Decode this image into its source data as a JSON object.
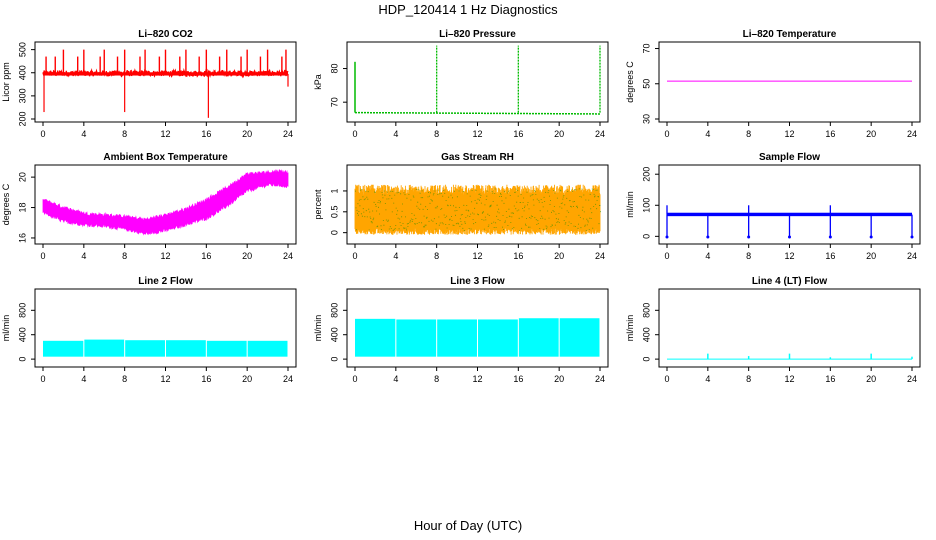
{
  "figure": {
    "title": "HDP_120414  1 Hz Diagnostics",
    "xlabel": "Hour of Day (UTC)"
  },
  "chart_data": [
    {
      "type": "line",
      "title": "Li-820 CO2",
      "ylabel": "Licor ppm",
      "color": "#ff0000",
      "xlim": [
        0,
        24
      ],
      "xticks": [
        0,
        4,
        8,
        12,
        16,
        20,
        24
      ],
      "ylim": [
        200,
        520
      ],
      "yticks": [
        200,
        300,
        400,
        500
      ],
      "pattern": "co2",
      "series": [
        {
          "name": "CO2",
          "base": 395,
          "noise": [
            385,
            410
          ],
          "spikes_up": [
            [
              0.3,
              470
            ],
            [
              1.2,
              470
            ],
            [
              2.0,
              500
            ],
            [
              3.4,
              470
            ],
            [
              4.0,
              500
            ],
            [
              5.6,
              470
            ],
            [
              6.0,
              500
            ],
            [
              7.3,
              470
            ],
            [
              8.0,
              500
            ],
            [
              9.5,
              470
            ],
            [
              10.0,
              500
            ],
            [
              11.4,
              470
            ],
            [
              12.0,
              500
            ],
            [
              13.4,
              470
            ],
            [
              14.0,
              500
            ],
            [
              15.3,
              470
            ],
            [
              16.0,
              500
            ],
            [
              17.3,
              470
            ],
            [
              18.0,
              500
            ],
            [
              19.4,
              470
            ],
            [
              20.0,
              500
            ],
            [
              21.3,
              470
            ],
            [
              22.0,
              500
            ],
            [
              23.4,
              470
            ],
            [
              23.8,
              500
            ]
          ],
          "spikes_down": [
            [
              0.1,
              230
            ],
            [
              8.0,
              230
            ],
            [
              16.2,
              205
            ],
            [
              24.0,
              340
            ]
          ]
        }
      ]
    },
    {
      "type": "line",
      "title": "Li-820 Pressure",
      "ylabel": "kPa",
      "color": "#00bb00",
      "xlim": [
        0,
        24
      ],
      "xticks": [
        0,
        4,
        8,
        12,
        16,
        20,
        24
      ],
      "ylim": [
        65,
        87
      ],
      "yticks": [
        70,
        80
      ],
      "pattern": "pressure",
      "series": [
        {
          "name": "Pressure",
          "start": 82,
          "level_start": 66.9,
          "level_end": 66.5,
          "spike_hours": [
            8,
            16,
            24
          ],
          "spike_value": 86.8
        }
      ]
    },
    {
      "type": "line",
      "title": "Li-820 Temperature",
      "ylabel": "degrees C",
      "color": "#ff00ff",
      "xlim": [
        0,
        24
      ],
      "xticks": [
        0,
        4,
        8,
        12,
        16,
        20,
        24
      ],
      "ylim": [
        30,
        72
      ],
      "yticks": [
        30,
        50,
        70
      ],
      "pattern": "flat",
      "series": [
        {
          "name": "Temperature",
          "value": 51.5
        }
      ]
    },
    {
      "type": "area",
      "title": "Ambient Box Temperature",
      "ylabel": "degrees C",
      "color": "#ff00ff",
      "xlim": [
        0,
        24
      ],
      "xticks": [
        0,
        4,
        8,
        12,
        16,
        20,
        24
      ],
      "ylim": [
        15.8,
        20.6
      ],
      "yticks": [
        16,
        18,
        20
      ],
      "pattern": "band",
      "series": [
        {
          "name": "Box temperature",
          "x": [
            0,
            2,
            4,
            6,
            8,
            10,
            12,
            14,
            16,
            18,
            20,
            22,
            23,
            24
          ],
          "lo": [
            17.7,
            17.1,
            16.9,
            16.8,
            16.6,
            16.3,
            16.5,
            16.9,
            17.3,
            18.1,
            19.1,
            19.5,
            19.5,
            19.4
          ],
          "hi": [
            18.5,
            18.0,
            17.6,
            17.5,
            17.4,
            17.2,
            17.5,
            17.9,
            18.5,
            19.3,
            20.2,
            20.3,
            20.4,
            20.3
          ]
        }
      ]
    },
    {
      "type": "scatter",
      "title": "Gas Stream RH",
      "ylabel": "percent",
      "color": "#ffa500",
      "color2": "#008800",
      "xlim": [
        0,
        24
      ],
      "xticks": [
        0,
        4,
        8,
        12,
        16,
        20,
        24
      ],
      "ylim": [
        -0.2,
        1.55
      ],
      "yticks": [
        0.0,
        0.5,
        1.0
      ],
      "pattern": "rh",
      "series": [
        {
          "name": "RH",
          "lo": -0.05,
          "hi": 1.15
        }
      ]
    },
    {
      "type": "line",
      "title": "Sample Flow",
      "ylabel": "ml/min",
      "color": "#0000ff",
      "xlim": [
        0,
        24
      ],
      "xticks": [
        0,
        4,
        8,
        12,
        16,
        20,
        24
      ],
      "ylim": [
        -15,
        220
      ],
      "yticks": [
        0,
        100,
        200
      ],
      "pattern": "sample",
      "series": [
        {
          "name": "Sample flow",
          "base": 70,
          "noise": [
            65,
            76
          ],
          "dip_hours": [
            0,
            4,
            8,
            12,
            16,
            20,
            24
          ],
          "dip_value": -2,
          "spike_hours": [
            0,
            8,
            16
          ],
          "spike_value": 100
        }
      ]
    },
    {
      "type": "area",
      "title": "Line 2 Flow",
      "ylabel": "ml/min",
      "color": "#00ffff",
      "xlim": [
        0,
        24
      ],
      "xticks": [
        0,
        4,
        8,
        12,
        16,
        20,
        24
      ],
      "ylim": [
        -80,
        1100
      ],
      "yticks": [
        0,
        400,
        800
      ],
      "pattern": "lineflow",
      "series": [
        {
          "name": "Line 2",
          "lo": 40,
          "hi": [
            300,
            320,
            310,
            310,
            300,
            300
          ],
          "gap_hours": [
            4,
            8,
            12,
            16,
            20
          ]
        }
      ]
    },
    {
      "type": "area",
      "title": "Line 3 Flow",
      "ylabel": "ml/min",
      "color": "#00ffff",
      "xlim": [
        0,
        24
      ],
      "xticks": [
        0,
        4,
        8,
        12,
        16,
        20,
        24
      ],
      "ylim": [
        -80,
        1100
      ],
      "yticks": [
        0,
        400,
        800
      ],
      "pattern": "lineflow",
      "series": [
        {
          "name": "Line 3",
          "lo": 40,
          "hi": [
            660,
            650,
            650,
            650,
            670,
            670
          ],
          "gap_hours": [
            4,
            8,
            12,
            16,
            20
          ]
        }
      ]
    },
    {
      "type": "line",
      "title": "Line 4 (LT) Flow",
      "ylabel": "ml/min",
      "color": "#00ffff",
      "xlim": [
        0,
        24
      ],
      "xticks": [
        0,
        4,
        8,
        12,
        16,
        20,
        24
      ],
      "ylim": [
        -80,
        1100
      ],
      "yticks": [
        0,
        400,
        800
      ],
      "pattern": "line4",
      "series": [
        {
          "name": "Line 4",
          "base": 0,
          "spike_hours": [
            4,
            8,
            12,
            16,
            20,
            24
          ],
          "spike_values": [
            90,
            50,
            90,
            30,
            90,
            40
          ]
        }
      ]
    }
  ]
}
